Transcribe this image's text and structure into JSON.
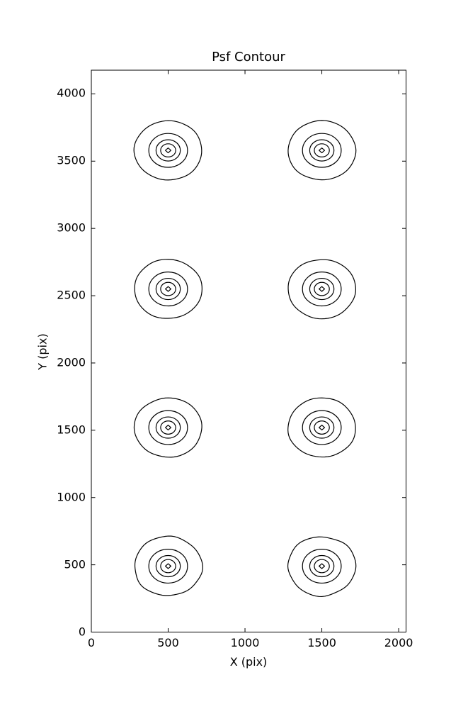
{
  "figure": {
    "background_color": "#ffffff",
    "line_color": "#000000"
  },
  "chart_data": {
    "type": "contour",
    "title": "Psf Contour",
    "xlabel": "X (pix)",
    "ylabel": "Y (pix)",
    "xlim": [
      0,
      2048
    ],
    "ylim": [
      0,
      4176
    ],
    "xticks": [
      0,
      500,
      1000,
      1500,
      2000
    ],
    "yticks": [
      0,
      500,
      1000,
      1500,
      2000,
      2500,
      3000,
      3500,
      4000
    ],
    "grid": false,
    "legend": "none",
    "description": "Eight PSF contour spots arranged in a 2-column by 4-row grid; each spot has 5 nested roughly circular contour levels, innermost level renders as a tiny diamond",
    "contour_levels_radii_pix": [
      220,
      126,
      79,
      49,
      18
    ],
    "psf_spots": [
      {
        "x": 500,
        "y": 490,
        "irregularity": 0.028
      },
      {
        "x": 1500,
        "y": 490,
        "irregularity": 0.03
      },
      {
        "x": 500,
        "y": 1520,
        "irregularity": 0.014
      },
      {
        "x": 1500,
        "y": 1520,
        "irregularity": 0.015
      },
      {
        "x": 500,
        "y": 2550,
        "irregularity": 0.013
      },
      {
        "x": 1500,
        "y": 2550,
        "irregularity": 0.014
      },
      {
        "x": 500,
        "y": 3580,
        "irregularity": 0.013
      },
      {
        "x": 1500,
        "y": 3580,
        "irregularity": 0.014
      }
    ]
  }
}
